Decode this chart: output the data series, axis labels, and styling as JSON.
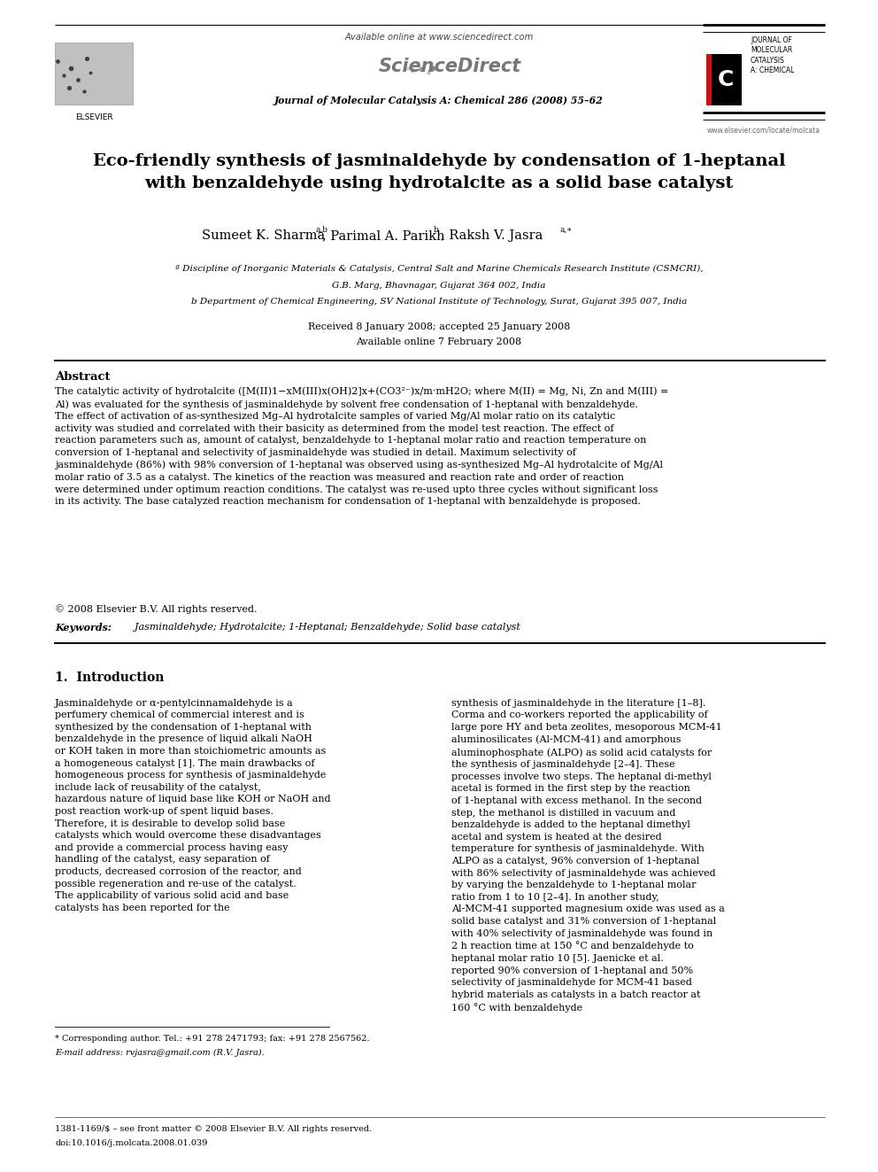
{
  "page_width": 9.92,
  "page_height": 13.23,
  "bg_color": "#ffffff",
  "available_online": "Available online at www.sciencedirect.com",
  "journal_line": "Journal of Molecular Catalysis A: Chemical 286 (2008) 55–62",
  "website": "www.elsevier.com/locate/molcata",
  "title_line1": "Eco-friendly synthesis of jasminaldehyde by condensation of 1-heptanal",
  "title_line2": "with benzaldehyde using hydrotalcite as a solid base catalyst",
  "author_name1": "Sumeet K. Sharma",
  "author_sup1": "a,b",
  "author_sep1": ", Parimal A. Parikh",
  "author_sup2": "b",
  "author_sep2": ", Raksh V. Jasra",
  "author_sup3": "a,∗",
  "affil_a1": "ª Discipline of Inorganic Materials & Catalysis, Central Salt and Marine Chemicals Research Institute (CSMCRI),",
  "affil_a2": "G.B. Marg, Bhavnagar, Gujarat 364 002, India",
  "affil_b": "b Department of Chemical Engineering, SV National Institute of Technology, Surat, Gujarat 395 007, India",
  "received": "Received 8 January 2008; accepted 25 January 2008",
  "available": "Available online 7 February 2008",
  "abstract_label": "Abstract",
  "abstract_body": "The catalytic activity of hydrotalcite ([M(II)1−xM(III)x(OH)2]x+(CO3²⁻)x/m·mH2O; where M(II) = Mg, Ni, Zn and M(III) = Al) was evaluated for the synthesis of jasminaldehyde by solvent free condensation of 1-heptanal with benzaldehyde. The effect of activation of as-synthesized Mg–Al hydrotalcite samples of varied Mg/Al molar ratio on its catalytic activity was studied and correlated with their basicity as determined from the model test reaction. The effect of reaction parameters such as, amount of catalyst, benzaldehyde to 1-heptanal molar ratio and reaction temperature on conversion of 1-heptanal and selectivity of jasminaldehyde was studied in detail. Maximum selectivity of jasminaldehyde (86%) with 98% conversion of 1-heptanal was observed using as-synthesized Mg–Al hydrotalcite of Mg/Al molar ratio of 3.5 as a catalyst. The kinetics of the reaction was measured and reaction rate and order of reaction were determined under optimum reaction conditions. The catalyst was re-used upto three cycles without significant loss in its activity. The base catalyzed reaction mechanism for condensation of 1-heptanal with benzaldehyde is proposed.",
  "copyright": "© 2008 Elsevier B.V. All rights reserved.",
  "kw_label": "Keywords:",
  "keywords": "  Jasminaldehyde; Hydrotalcite; 1-Heptanal; Benzaldehyde; Solid base catalyst",
  "sec1_title": "1.  Introduction",
  "intro_col1": "    Jasminaldehyde or α-pentylcinnamaldehyde is a perfumery chemical of commercial interest and is synthesized by the condensation of 1-heptanal with benzaldehyde in the presence of liquid alkali NaOH or KOH taken in more than stoichiometric amounts as a homogeneous catalyst [1]. The main drawbacks of homogeneous process for synthesis of jasminaldehyde include lack of reusability of the catalyst, hazardous nature of liquid base like KOH or NaOH and post reaction work-up of spent liquid bases. Therefore, it is desirable to develop solid base catalysts which would overcome these disadvantages and provide a commercial process having easy handling of the catalyst, easy separation of products, decreased corrosion of the reactor, and possible regeneration and re-use of the catalyst. The applicability of various solid acid and base catalysts has been reported for the",
  "intro_col2": "synthesis of jasminaldehyde in the literature [1–8]. Corma and co-workers reported the applicability of large pore HY and beta zeolites, mesoporous MCM-41 aluminosilicates (Al-MCM-41) and amorphous aluminophosphate (ALPO) as solid acid catalysts for the synthesis of jasminaldehyde [2–4]. These processes involve two steps. The heptanal di-methyl acetal is formed in the first step by the reaction of 1-heptanal with excess methanol. In the second step, the methanol is distilled in vacuum and benzaldehyde is added to the heptanal dimethyl acetal and system is heated at the desired temperature for synthesis of jasminaldehyde. With ALPO as a catalyst, 96% conversion of 1-heptanal with 86% selectivity of jasminaldehyde was achieved by varying the benzaldehyde to 1-heptanal molar ratio from 1 to 10 [2–4]. In another study, Al-MCM-41 supported magnesium oxide was used as a solid base catalyst and 31% conversion of 1-heptanal with 40% selectivity of jasminaldehyde was found in 2 h reaction time at 150 °C and benzaldehyde to heptanal molar ratio 10 [5]. Jaenicke et al. reported 90% conversion of 1-heptanal and 50% selectivity of jasminaldehyde for MCM-41 based hybrid materials as catalysts in a batch reactor at 160 °C with benzaldehyde",
  "footnote1": "* Corresponding author. Tel.: +91 278 2471793; fax: +91 278 2567562.",
  "footnote2": "E-mail address: rvjasra@gmail.com (R.V. Jasra).",
  "footer1": "1381-1169/$ – see front matter © 2008 Elsevier B.V. All rights reserved.",
  "footer2": "doi:10.1016/j.molcata.2008.01.039"
}
